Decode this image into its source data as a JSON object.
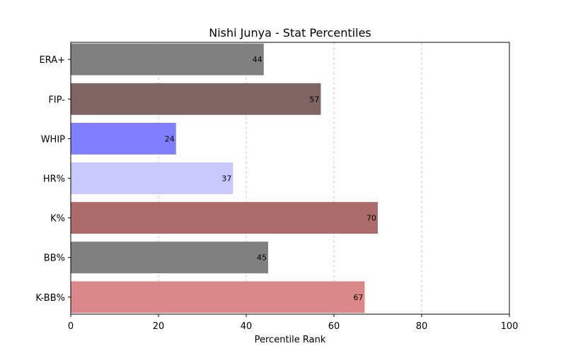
{
  "chart_data": {
    "type": "bar",
    "orientation": "horizontal",
    "title": "Nishi Junya - Stat Percentiles",
    "xlabel": "Percentile Rank",
    "ylabel": "",
    "xlim": [
      0,
      100
    ],
    "xticks": [
      0,
      20,
      40,
      60,
      80,
      100
    ],
    "grid": "x-dashed",
    "categories": [
      "ERA+",
      "FIP-",
      "WHIP",
      "HR%",
      "K%",
      "BB%",
      "K-BB%"
    ],
    "values": [
      44,
      57,
      24,
      37,
      70,
      45,
      67
    ],
    "colors": [
      "#808080",
      "#806464",
      "#8080ff",
      "#c8c8ff",
      "#ac6c6c",
      "#808080",
      "#dc8888"
    ]
  }
}
